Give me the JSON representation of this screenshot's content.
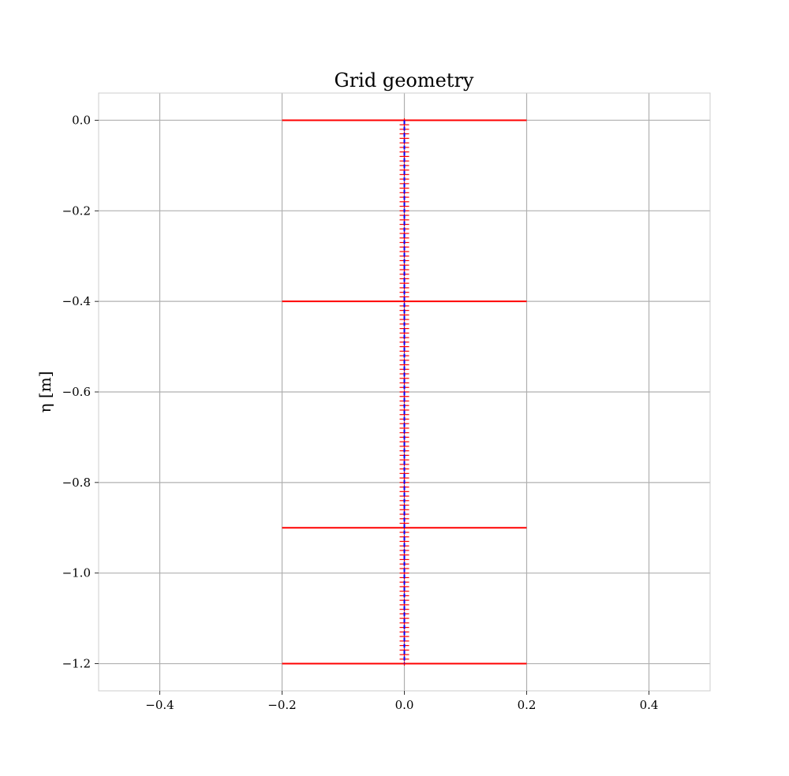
{
  "chart_data": {
    "type": "line",
    "title": "Grid geometry",
    "xlabel": "",
    "ylabel": "η [m]",
    "xlim": [
      -0.5,
      0.5
    ],
    "ylim": [
      -1.26,
      0.06
    ],
    "x_ticks": [
      -0.4,
      -0.2,
      0.0,
      0.2,
      0.4
    ],
    "x_tick_labels": [
      "−0.4",
      "−0.2",
      "0.0",
      "0.2",
      "0.4"
    ],
    "y_ticks": [
      0.0,
      -0.2,
      -0.4,
      -0.6,
      -0.8,
      -1.0,
      -1.2
    ],
    "y_tick_labels": [
      "0.0",
      "−0.2",
      "−0.4",
      "−0.6",
      "−0.8",
      "−1.0",
      "−1.2"
    ],
    "grid": true,
    "layer_boundaries": {
      "color": "#ff0000",
      "x_range": [
        -0.2,
        0.2
      ],
      "y": [
        0.0,
        -0.4,
        -0.9,
        -1.2
      ]
    },
    "grid_nodes": {
      "x": 0.0,
      "y_start": 0.0,
      "y_end": -1.2,
      "spacing": 0.01,
      "marker_color": "#ff0000",
      "line_color": "#0000ff",
      "marker": "+"
    },
    "colors": {
      "grid": "#b0b0b0",
      "spine": "#cccccc"
    }
  }
}
